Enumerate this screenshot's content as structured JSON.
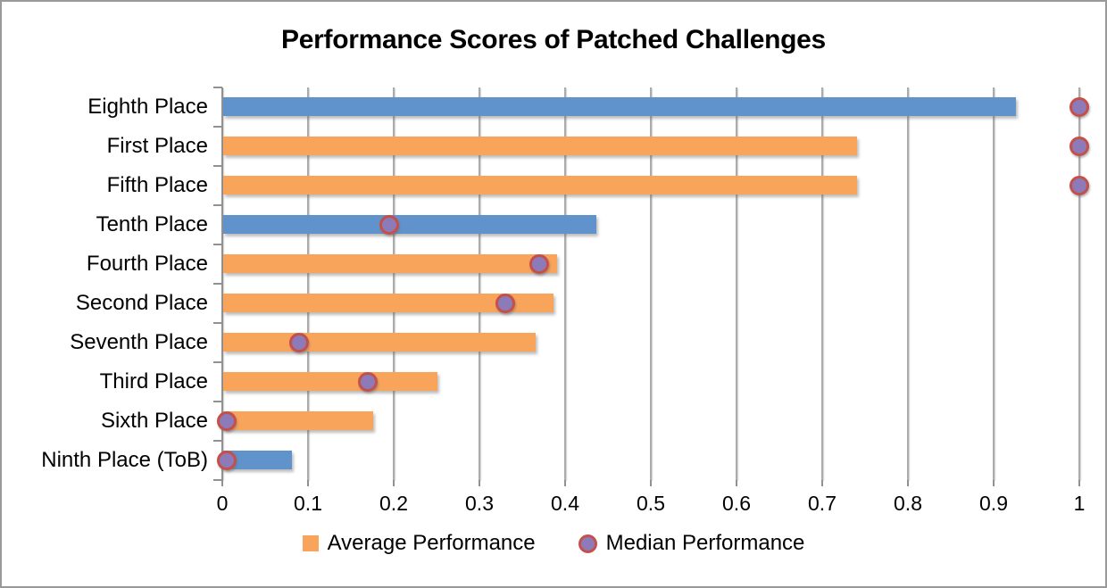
{
  "window": {
    "background": "#FFFFFF",
    "border_color": "#999999"
  },
  "chart_data": {
    "type": "bar",
    "orientation": "horizontal",
    "title": "Performance Scores of Patched Challenges",
    "categories": [
      "Eighth Place",
      "First Place",
      "Fifth Place",
      "Tenth Place",
      "Fourth Place",
      "Second Place",
      "Seventh Place",
      "Third Place",
      "Sixth Place",
      "Ninth Place (ToB)"
    ],
    "series": [
      {
        "name": "Average Performance",
        "type": "bar",
        "values": [
          0.925,
          0.74,
          0.74,
          0.435,
          0.39,
          0.385,
          0.365,
          0.25,
          0.175,
          0.08
        ]
      },
      {
        "name": "Median Performance",
        "type": "scatter",
        "values": [
          1,
          1,
          1,
          0.195,
          0.37,
          0.33,
          0.09,
          0.17,
          0.005,
          0.005
        ]
      }
    ],
    "bar_colors": [
      "#6093CC",
      "#F9A45B",
      "#F9A45B",
      "#6093CC",
      "#F9A45B",
      "#F9A45B",
      "#F9A45B",
      "#F9A45B",
      "#F9A45B",
      "#6093CC"
    ],
    "marker_style": {
      "fill": "#8C7BB8",
      "stroke": "#C5504B"
    },
    "xlim": [
      0,
      1
    ],
    "x_ticks": [
      {
        "label": "0",
        "value": 0
      },
      {
        "label": "0.1",
        "value": 0.1
      },
      {
        "label": "0.2",
        "value": 0.2
      },
      {
        "label": "0.3",
        "value": 0.3
      },
      {
        "label": "0.4",
        "value": 0.4
      },
      {
        "label": "0.5",
        "value": 0.5
      },
      {
        "label": "0.6",
        "value": 0.6
      },
      {
        "label": "0.7",
        "value": 0.7
      },
      {
        "label": "0.8",
        "value": 0.8
      },
      {
        "label": "0.9",
        "value": 0.9
      },
      {
        "label": "1",
        "value": 1
      }
    ],
    "grid": "vertical-gridlines-on",
    "legend_position": "bottom",
    "legend": [
      {
        "label": "Average Performance",
        "swatch": "square",
        "color": "#F9A45B"
      },
      {
        "label": "Median Performance",
        "swatch": "circle",
        "fill": "#8C7BB8",
        "stroke": "#C5504B"
      }
    ],
    "colors": {
      "gridline": "#ABABAB",
      "axis": "#919191",
      "text": "#000000"
    }
  }
}
